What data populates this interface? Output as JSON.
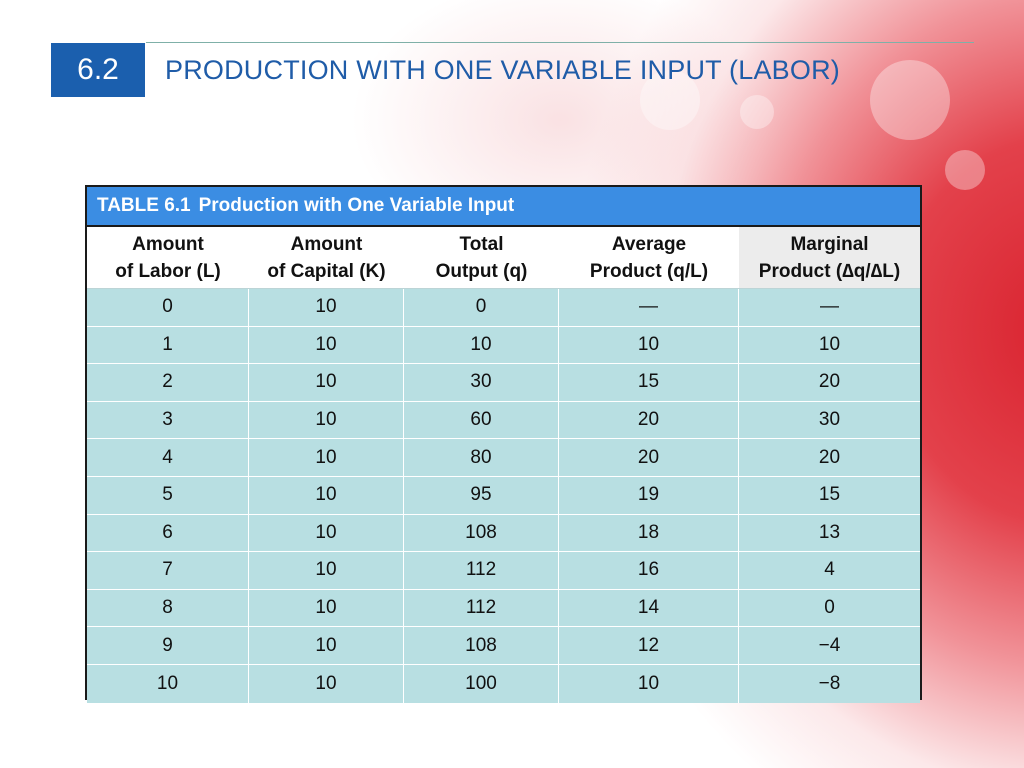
{
  "slide": {
    "section_number": "6.2",
    "title": "PRODUCTION WITH ONE VARIABLE INPUT (LABOR)"
  },
  "table": {
    "caption_number": "TABLE 6.1",
    "caption_text": "Production with One Variable Input",
    "headers": [
      [
        "Amount",
        "of Labor (L)"
      ],
      [
        "Amount",
        "of Capital (K)"
      ],
      [
        "Total",
        "Output (q)"
      ],
      [
        "Average",
        "Product (q/L)"
      ],
      [
        "Marginal",
        "Product (∆q/∆L)"
      ]
    ],
    "rows": [
      [
        "0",
        "10",
        "0",
        "—",
        "—"
      ],
      [
        "1",
        "10",
        "10",
        "10",
        "10"
      ],
      [
        "2",
        "10",
        "30",
        "15",
        "20"
      ],
      [
        "3",
        "10",
        "60",
        "20",
        "30"
      ],
      [
        "4",
        "10",
        "80",
        "20",
        "20"
      ],
      [
        "5",
        "10",
        "95",
        "19",
        "15"
      ],
      [
        "6",
        "10",
        "108",
        "18",
        "13"
      ],
      [
        "7",
        "10",
        "112",
        "16",
        "4"
      ],
      [
        "8",
        "10",
        "112",
        "14",
        "0"
      ],
      [
        "9",
        "10",
        "108",
        "12",
        "−4"
      ],
      [
        "10",
        "10",
        "100",
        "10",
        "−8"
      ]
    ]
  },
  "colors": {
    "section_box": "#1b5fae",
    "title": "#1f5ca8",
    "caption_bar": "#3b8de3",
    "row_fill": "#b8dfe2",
    "background_accent": "#d9232f"
  }
}
